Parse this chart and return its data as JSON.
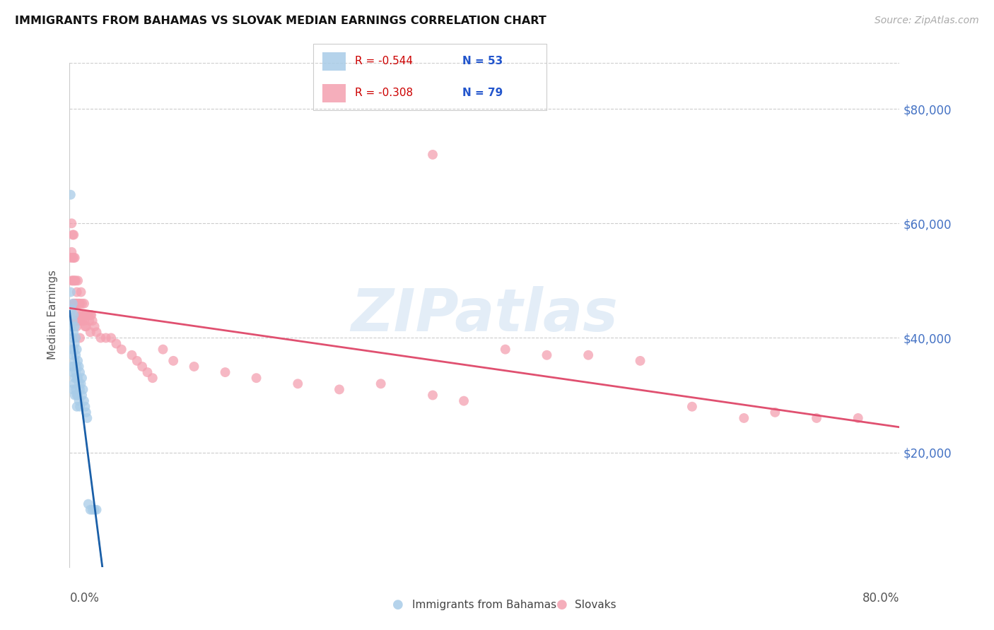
{
  "title": "IMMIGRANTS FROM BAHAMAS VS SLOVAK MEDIAN EARNINGS CORRELATION CHART",
  "source": "Source: ZipAtlas.com",
  "ylabel": "Median Earnings",
  "ytick_values": [
    20000,
    40000,
    60000,
    80000
  ],
  "ytick_labels": [
    "$20,000",
    "$40,000",
    "$60,000",
    "$80,000"
  ],
  "ymin": 0,
  "ymax": 88000,
  "xmin": 0.0,
  "xmax": 0.8,
  "legend_entry1_r": "R = -0.544",
  "legend_entry1_n": "N = 53",
  "legend_entry2_r": "R = -0.308",
  "legend_entry2_n": "N = 79",
  "legend_label1": "Immigrants from Bahamas",
  "legend_label2": "Slovaks",
  "blue_color": "#a8cce8",
  "pink_color": "#f4a0b0",
  "blue_line_color": "#1a5fa8",
  "pink_line_color": "#e05070",
  "dashed_line_color": "#bbbbbb",
  "ytick_color": "#4472c4",
  "bahamas_x": [
    0.001,
    0.001,
    0.002,
    0.002,
    0.002,
    0.002,
    0.003,
    0.003,
    0.003,
    0.003,
    0.003,
    0.003,
    0.004,
    0.004,
    0.004,
    0.004,
    0.004,
    0.005,
    0.005,
    0.005,
    0.005,
    0.005,
    0.006,
    0.006,
    0.006,
    0.006,
    0.007,
    0.007,
    0.007,
    0.007,
    0.007,
    0.008,
    0.008,
    0.008,
    0.009,
    0.009,
    0.009,
    0.01,
    0.01,
    0.01,
    0.011,
    0.012,
    0.012,
    0.013,
    0.014,
    0.015,
    0.016,
    0.017,
    0.018,
    0.02,
    0.022,
    0.024,
    0.026
  ],
  "bahamas_y": [
    48000,
    44000,
    45000,
    42000,
    38000,
    35000,
    46000,
    43000,
    40000,
    37000,
    34000,
    31000,
    44000,
    41000,
    38000,
    35000,
    32000,
    42000,
    39000,
    36000,
    33000,
    30000,
    40000,
    37000,
    34000,
    31000,
    38000,
    35000,
    33000,
    30000,
    28000,
    36000,
    33000,
    30000,
    35000,
    32000,
    29000,
    34000,
    31000,
    28000,
    32000,
    33000,
    30000,
    31000,
    29000,
    28000,
    27000,
    26000,
    11000,
    10000,
    10000,
    10000,
    10000
  ],
  "bahamas_y_outlier": [
    65000
  ],
  "bahamas_x_outlier": [
    0.001
  ],
  "slovak_x": [
    0.001,
    0.002,
    0.002,
    0.002,
    0.003,
    0.003,
    0.003,
    0.004,
    0.004,
    0.004,
    0.004,
    0.005,
    0.005,
    0.005,
    0.005,
    0.006,
    0.006,
    0.006,
    0.007,
    0.007,
    0.007,
    0.007,
    0.008,
    0.008,
    0.008,
    0.009,
    0.009,
    0.01,
    0.01,
    0.01,
    0.011,
    0.011,
    0.012,
    0.012,
    0.013,
    0.014,
    0.014,
    0.015,
    0.015,
    0.016,
    0.016,
    0.017,
    0.018,
    0.019,
    0.02,
    0.02,
    0.021,
    0.022,
    0.024,
    0.026,
    0.03,
    0.035,
    0.04,
    0.045,
    0.05,
    0.06,
    0.065,
    0.07,
    0.075,
    0.08,
    0.09,
    0.1,
    0.12,
    0.15,
    0.18,
    0.22,
    0.26,
    0.3,
    0.35,
    0.38,
    0.42,
    0.46,
    0.5,
    0.55,
    0.6,
    0.65,
    0.68,
    0.72,
    0.76
  ],
  "slovak_y": [
    54000,
    60000,
    55000,
    50000,
    58000,
    54000,
    50000,
    58000,
    54000,
    50000,
    46000,
    54000,
    50000,
    46000,
    43000,
    50000,
    46000,
    43000,
    48000,
    44000,
    46000,
    42000,
    50000,
    46000,
    43000,
    46000,
    43000,
    46000,
    43000,
    40000,
    48000,
    44000,
    46000,
    43000,
    44000,
    46000,
    43000,
    44000,
    42000,
    44000,
    42000,
    44000,
    44000,
    43000,
    44000,
    41000,
    44000,
    43000,
    42000,
    41000,
    40000,
    40000,
    40000,
    39000,
    38000,
    37000,
    36000,
    35000,
    34000,
    33000,
    38000,
    36000,
    35000,
    34000,
    33000,
    32000,
    31000,
    32000,
    30000,
    29000,
    38000,
    37000,
    37000,
    36000,
    28000,
    26000,
    27000,
    26000,
    26000
  ],
  "slovak_y_outlier": [
    72000
  ],
  "slovak_x_outlier": [
    0.35
  ]
}
